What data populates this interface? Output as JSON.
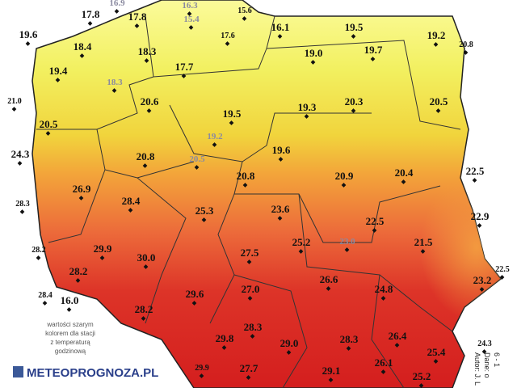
{
  "map": {
    "stations": [
      {
        "label": "16.9",
        "hourly": true
      },
      {
        "label": "16.3",
        "hourly": true
      },
      {
        "label": "15.6"
      },
      {
        "label": "17.8"
      },
      {
        "label": "17.8"
      },
      {
        "label": "15.4",
        "hourly": true
      },
      {
        "label": "17.6"
      },
      {
        "label": "16.1"
      },
      {
        "label": "19.5"
      },
      {
        "label": "19.2"
      },
      {
        "label": "20.8"
      },
      {
        "label": "19.6"
      },
      {
        "label": "18.4"
      },
      {
        "label": "18.3"
      },
      {
        "label": "19.0"
      },
      {
        "label": "19.7"
      },
      {
        "label": "19.4"
      },
      {
        "label": "18.3",
        "hourly": true
      },
      {
        "label": "17.7"
      },
      {
        "label": "21.0"
      },
      {
        "label": "20.6"
      },
      {
        "label": "19.5"
      },
      {
        "label": "19.3"
      },
      {
        "label": "20.3"
      },
      {
        "label": "20.5"
      },
      {
        "label": "19.2",
        "hourly": true
      },
      {
        "label": "20.5"
      },
      {
        "label": "24.3"
      },
      {
        "label": "20.8"
      },
      {
        "label": "20.5",
        "hourly": true
      },
      {
        "label": "19.6"
      },
      {
        "label": "20.8"
      },
      {
        "label": "20.9"
      },
      {
        "label": "20.4"
      },
      {
        "label": "22.5"
      },
      {
        "label": "26.9"
      },
      {
        "label": "28.3"
      },
      {
        "label": "28.4"
      },
      {
        "label": "25.3"
      },
      {
        "label": "23.6"
      },
      {
        "label": "22.9"
      },
      {
        "label": "22.5"
      },
      {
        "label": "21.5"
      },
      {
        "label": "23.0",
        "hourly": true
      },
      {
        "label": "25.2"
      },
      {
        "label": "28.2"
      },
      {
        "label": "29.9"
      },
      {
        "label": "30.0"
      },
      {
        "label": "27.5"
      },
      {
        "label": "22.5"
      },
      {
        "label": "28.2"
      },
      {
        "label": "23.2"
      },
      {
        "label": "26.6"
      },
      {
        "label": "24.8"
      },
      {
        "label": "28.4"
      },
      {
        "label": "16.0"
      },
      {
        "label": "27.0"
      },
      {
        "label": "29.6"
      },
      {
        "label": "28.2"
      },
      {
        "label": "28.3"
      },
      {
        "label": "26.4"
      },
      {
        "label": "24.3"
      },
      {
        "label": "29.8"
      },
      {
        "label": "29.0"
      },
      {
        "label": "28.3"
      },
      {
        "label": "25.4"
      },
      {
        "label": "26.1"
      },
      {
        "label": "27.7"
      },
      {
        "label": "29.1"
      },
      {
        "label": "29.9"
      },
      {
        "label": "25.2"
      }
    ],
    "note": [
      "wartości szarym",
      "kolorem dla stacji",
      "z temperaturą",
      "godzinową"
    ],
    "brand": "METEOPROGNOZA.PL",
    "side_text": [
      "Autor: J. L",
      "Dane: o",
      "6 - 1"
    ]
  }
}
